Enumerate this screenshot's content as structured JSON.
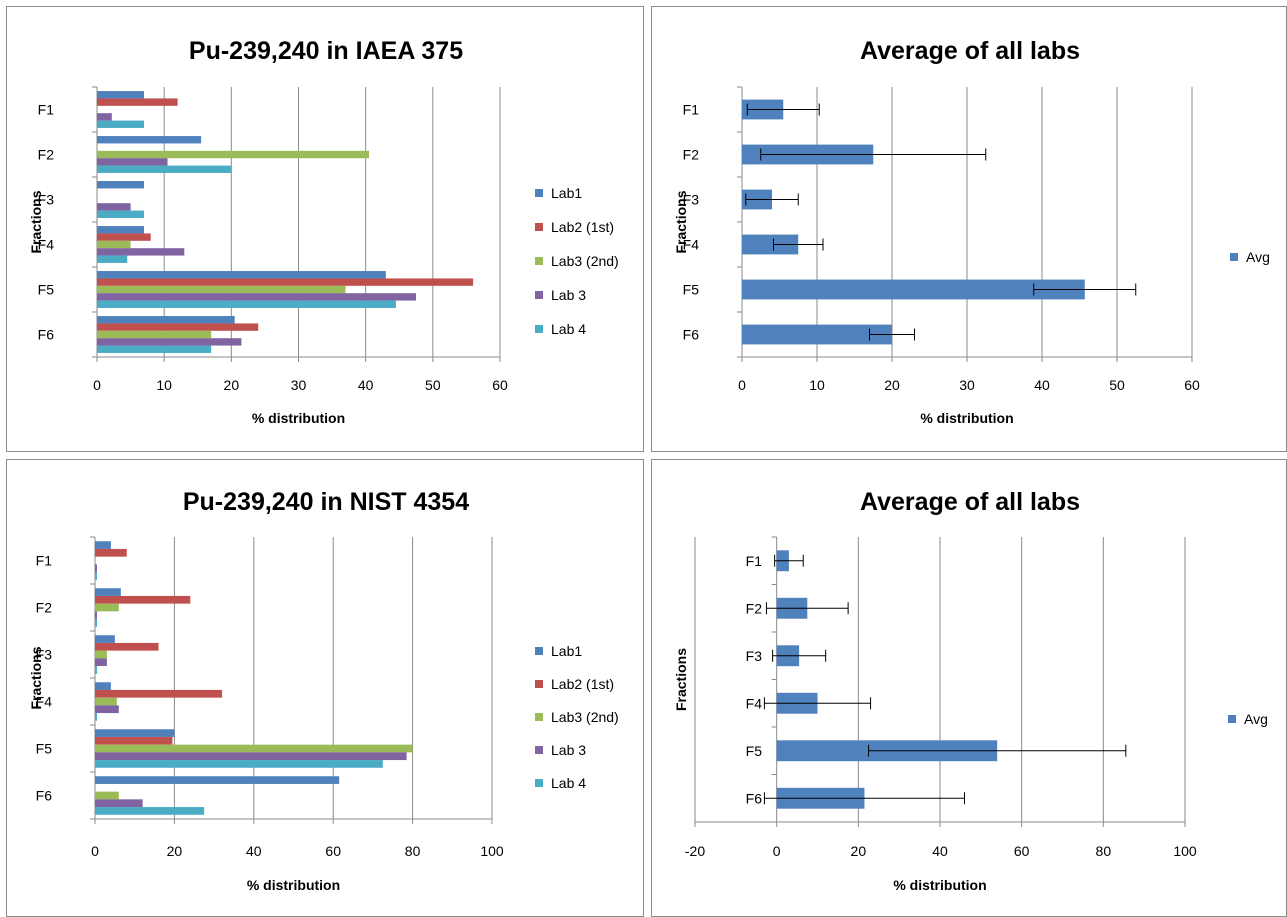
{
  "chart_data": [
    {
      "type": "bar",
      "orientation": "horizontal",
      "title": "Pu-239,240 in IAEA 375",
      "xlabel": "% distribution",
      "ylabel": "Fractions",
      "categories": [
        "F1",
        "F2",
        "F3",
        "F4",
        "F5",
        "F6"
      ],
      "xlim": [
        0,
        60
      ],
      "xticks": [
        0,
        10,
        20,
        30,
        40,
        50,
        60
      ],
      "grid": "vertical",
      "legend": "right",
      "series": [
        {
          "name": "Lab1",
          "color": "#4F81BD",
          "values": [
            7,
            15.5,
            7,
            7,
            43,
            20.5
          ]
        },
        {
          "name": "Lab2 (1st)",
          "color": "#C0504D",
          "values": [
            12,
            0,
            0,
            8,
            56,
            24
          ]
        },
        {
          "name": "Lab3 (2nd)",
          "color": "#9BBB59",
          "values": [
            0,
            40.5,
            0,
            5,
            37,
            17
          ]
        },
        {
          "name": "Lab 3",
          "color": "#8064A2",
          "values": [
            2.2,
            10.5,
            5,
            13,
            47.5,
            21.5
          ]
        },
        {
          "name": "Lab 4",
          "color": "#4BACC6",
          "values": [
            7,
            20,
            7,
            4.5,
            44.5,
            17
          ]
        }
      ]
    },
    {
      "type": "bar",
      "orientation": "horizontal",
      "title": "Average of all labs",
      "xlabel": "% distribution",
      "ylabel": "Fractions",
      "categories": [
        "F1",
        "F2",
        "F3",
        "F4",
        "F5",
        "F6"
      ],
      "xlim": [
        0,
        60
      ],
      "xticks": [
        0,
        10,
        20,
        30,
        40,
        50,
        60
      ],
      "grid": "vertical",
      "legend": "right",
      "series": [
        {
          "name": "Avg",
          "color": "#4F81BD",
          "values": [
            5.5,
            17.5,
            4,
            7.5,
            45.7,
            20
          ],
          "error": [
            4.8,
            15,
            3.5,
            3.3,
            6.8,
            3
          ]
        }
      ]
    },
    {
      "type": "bar",
      "orientation": "horizontal",
      "title": "Pu-239,240 in NIST 4354",
      "xlabel": "% distribution",
      "ylabel": "Fractions",
      "categories": [
        "F1",
        "F2",
        "F3",
        "F4",
        "F5",
        "F6"
      ],
      "xlim": [
        0,
        100
      ],
      "xticks": [
        0,
        20,
        40,
        60,
        80,
        100
      ],
      "grid": "vertical",
      "legend": "right",
      "series": [
        {
          "name": "Lab1",
          "color": "#4F81BD",
          "values": [
            4,
            6.5,
            5,
            4,
            20,
            61.5
          ]
        },
        {
          "name": "Lab2 (1st)",
          "color": "#C0504D",
          "values": [
            8,
            24,
            16,
            32,
            19.5,
            0
          ]
        },
        {
          "name": "Lab3 (2nd)",
          "color": "#9BBB59",
          "values": [
            0,
            6,
            3,
            5.5,
            80,
            6
          ]
        },
        {
          "name": "Lab 3",
          "color": "#8064A2",
          "values": [
            0.5,
            0.5,
            3,
            6,
            78.5,
            12
          ]
        },
        {
          "name": "Lab 4",
          "color": "#4BACC6",
          "values": [
            0.5,
            0.5,
            0.5,
            0.5,
            72.5,
            27.5
          ]
        }
      ]
    },
    {
      "type": "bar",
      "orientation": "horizontal",
      "title": "Average of all labs",
      "xlabel": "% distribution",
      "ylabel": "Fractions",
      "categories": [
        "F1",
        "F2",
        "F3",
        "F4",
        "F5",
        "F6"
      ],
      "xlim": [
        -20,
        100
      ],
      "xticks": [
        -20,
        0,
        20,
        40,
        60,
        80,
        100
      ],
      "grid": "vertical",
      "legend": "right",
      "series": [
        {
          "name": "Avg",
          "color": "#4F81BD",
          "values": [
            3,
            7.5,
            5.5,
            10,
            54,
            21.5
          ],
          "error": [
            3.5,
            10,
            6.5,
            13,
            31.5,
            24.5
          ]
        }
      ]
    }
  ]
}
